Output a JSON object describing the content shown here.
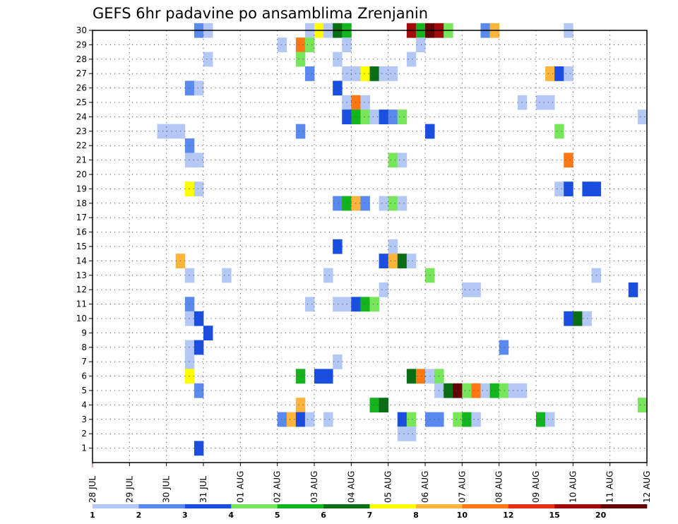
{
  "chart_data": {
    "type": "heatmap",
    "title": "GEFS 6hr padavine po ansamblima Zrenjanin",
    "xlabel": "",
    "ylabel": "",
    "x_ticks": [
      "28 JUL",
      "29 JUL",
      "30 JUL",
      "31 JUL",
      "01 AUG",
      "02 AUG",
      "03 AUG",
      "04 AUG",
      "05 AUG",
      "06 AUG",
      "07 AUG",
      "08 AUG",
      "09 AUG",
      "10 AUG",
      "11 AUG",
      "12 AUG"
    ],
    "y_ticks": [
      1,
      2,
      3,
      4,
      5,
      6,
      7,
      8,
      9,
      10,
      11,
      12,
      13,
      14,
      15,
      16,
      17,
      18,
      19,
      20,
      21,
      22,
      23,
      24,
      25,
      26,
      27,
      28,
      29,
      30
    ],
    "x_step_hours": 6,
    "ylim": [
      0,
      30
    ],
    "grid": true,
    "legend_position": "bottom",
    "legend": {
      "labels": [
        "1",
        "2",
        "3",
        "4",
        "5",
        "6",
        "7",
        "8",
        "10",
        "12",
        "15",
        "20"
      ],
      "colors": [
        "#b4c8f5",
        "#5a8af0",
        "#1a4ee0",
        "#78e65a",
        "#14b41e",
        "#0a6e14",
        "#ffff00",
        "#ffb43c",
        "#ff7814",
        "#e63214",
        "#a00a0a",
        "#640000"
      ]
    },
    "series": [
      {
        "member": 30,
        "cells": [
          [
            12,
            2
          ],
          [
            13,
            1
          ],
          [
            24,
            1
          ],
          [
            25,
            7
          ],
          [
            26,
            1
          ],
          [
            27,
            6
          ],
          [
            28,
            5
          ],
          [
            35,
            11
          ],
          [
            36,
            5
          ],
          [
            37,
            12
          ],
          [
            38,
            11
          ],
          [
            39,
            4
          ],
          [
            43,
            2
          ],
          [
            44,
            8
          ],
          [
            52,
            1
          ]
        ]
      },
      {
        "member": 29,
        "cells": [
          [
            21,
            1
          ],
          [
            23,
            9
          ],
          [
            24,
            4
          ],
          [
            28,
            1
          ],
          [
            36,
            1
          ]
        ]
      },
      {
        "member": 28,
        "cells": [
          [
            13,
            1
          ],
          [
            23,
            4
          ],
          [
            27,
            1
          ],
          [
            35,
            1
          ]
        ]
      },
      {
        "member": 27,
        "cells": [
          [
            24,
            2
          ],
          [
            28,
            1
          ],
          [
            29,
            1
          ],
          [
            30,
            7
          ],
          [
            31,
            6
          ],
          [
            32,
            1
          ],
          [
            33,
            1
          ],
          [
            50,
            8
          ],
          [
            51,
            3
          ],
          [
            52,
            1
          ]
        ]
      },
      {
        "member": 26,
        "cells": [
          [
            11,
            2
          ],
          [
            12,
            1
          ],
          [
            27,
            3
          ]
        ]
      },
      {
        "member": 25,
        "cells": [
          [
            28,
            1
          ],
          [
            29,
            9
          ],
          [
            30,
            1
          ],
          [
            47,
            1
          ],
          [
            49,
            1
          ],
          [
            50,
            1
          ]
        ]
      },
      {
        "member": 24,
        "cells": [
          [
            28,
            3
          ],
          [
            29,
            5
          ],
          [
            30,
            4
          ],
          [
            31,
            1
          ],
          [
            32,
            3
          ],
          [
            33,
            2
          ],
          [
            34,
            4
          ],
          [
            60,
            1
          ]
        ]
      },
      {
        "member": 23,
        "cells": [
          [
            8,
            1
          ],
          [
            9,
            1
          ],
          [
            10,
            1
          ],
          [
            23,
            2
          ],
          [
            37,
            3
          ],
          [
            51,
            4
          ]
        ]
      },
      {
        "member": 22,
        "cells": [
          [
            11,
            2
          ]
        ]
      },
      {
        "member": 21,
        "cells": [
          [
            11,
            1
          ],
          [
            12,
            1
          ],
          [
            33,
            4
          ],
          [
            34,
            1
          ],
          [
            52,
            9
          ]
        ]
      },
      {
        "member": 19,
        "cells": [
          [
            11,
            7
          ],
          [
            12,
            1
          ],
          [
            51,
            1
          ],
          [
            52,
            3
          ],
          [
            54,
            3
          ],
          [
            55,
            3
          ]
        ]
      },
      {
        "member": 18,
        "cells": [
          [
            27,
            2
          ],
          [
            28,
            5
          ],
          [
            29,
            8
          ],
          [
            30,
            2
          ],
          [
            32,
            1
          ],
          [
            33,
            4
          ],
          [
            34,
            1
          ]
        ]
      },
      {
        "member": 15,
        "cells": [
          [
            27,
            3
          ],
          [
            33,
            1
          ]
        ]
      },
      {
        "member": 14,
        "cells": [
          [
            10,
            8
          ],
          [
            32,
            3
          ],
          [
            33,
            8
          ],
          [
            34,
            6
          ],
          [
            35,
            1
          ]
        ]
      },
      {
        "member": 13,
        "cells": [
          [
            11,
            1
          ],
          [
            15,
            1
          ],
          [
            26,
            1
          ],
          [
            37,
            4
          ],
          [
            55,
            1
          ]
        ]
      },
      {
        "member": 12,
        "cells": [
          [
            32,
            1
          ],
          [
            41,
            1
          ],
          [
            42,
            1
          ],
          [
            59,
            3
          ]
        ]
      },
      {
        "member": 11,
        "cells": [
          [
            11,
            2
          ],
          [
            24,
            1
          ],
          [
            27,
            1
          ],
          [
            28,
            1
          ],
          [
            29,
            3
          ],
          [
            30,
            5
          ],
          [
            31,
            4
          ]
        ]
      },
      {
        "member": 10,
        "cells": [
          [
            11,
            1
          ],
          [
            12,
            3
          ],
          [
            52,
            3
          ],
          [
            53,
            6
          ],
          [
            54,
            1
          ]
        ]
      },
      {
        "member": 9,
        "cells": [
          [
            13,
            3
          ]
        ]
      },
      {
        "member": 8,
        "cells": [
          [
            11,
            1
          ],
          [
            12,
            3
          ],
          [
            45,
            2
          ]
        ]
      },
      {
        "member": 7,
        "cells": [
          [
            11,
            1
          ],
          [
            27,
            1
          ]
        ]
      },
      {
        "member": 6,
        "cells": [
          [
            11,
            7
          ],
          [
            23,
            5
          ],
          [
            25,
            3
          ],
          [
            26,
            3
          ],
          [
            35,
            6
          ],
          [
            36,
            9
          ],
          [
            37,
            1
          ],
          [
            38,
            4
          ]
        ]
      },
      {
        "member": 5,
        "cells": [
          [
            12,
            2
          ],
          [
            38,
            1
          ],
          [
            39,
            6
          ],
          [
            40,
            12
          ],
          [
            41,
            4
          ],
          [
            42,
            9
          ],
          [
            43,
            1
          ],
          [
            44,
            5
          ],
          [
            45,
            4
          ],
          [
            46,
            1
          ],
          [
            47,
            1
          ]
        ]
      },
      {
        "member": 4,
        "cells": [
          [
            23,
            8
          ],
          [
            31,
            5
          ],
          [
            32,
            6
          ],
          [
            60,
            4
          ]
        ]
      },
      {
        "member": 3,
        "cells": [
          [
            21,
            2
          ],
          [
            22,
            8
          ],
          [
            23,
            3
          ],
          [
            24,
            1
          ],
          [
            26,
            1
          ],
          [
            34,
            3
          ],
          [
            35,
            4
          ],
          [
            37,
            2
          ],
          [
            38,
            2
          ],
          [
            40,
            4
          ],
          [
            41,
            5
          ],
          [
            42,
            1
          ],
          [
            49,
            5
          ],
          [
            50,
            1
          ]
        ]
      },
      {
        "member": 2,
        "cells": [
          [
            34,
            1
          ],
          [
            35,
            1
          ]
        ]
      },
      {
        "member": 1,
        "cells": [
          [
            12,
            3
          ]
        ]
      }
    ]
  }
}
